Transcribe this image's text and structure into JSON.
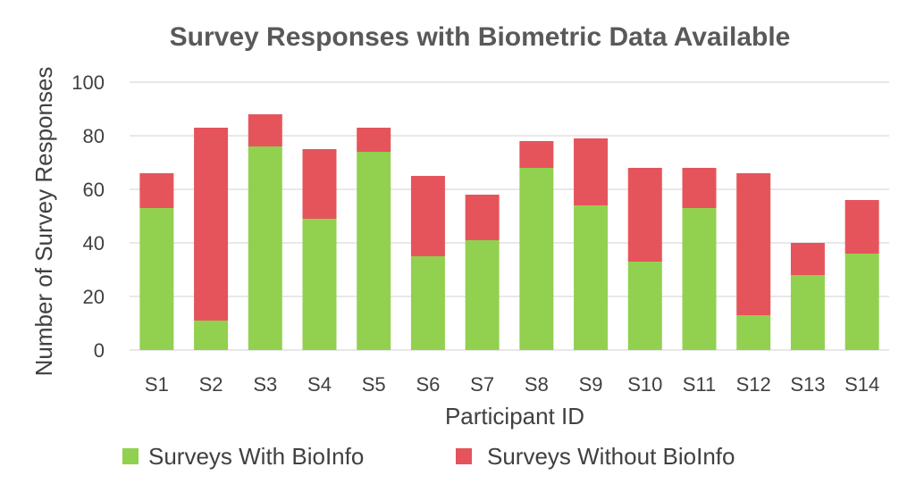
{
  "chart_data": {
    "type": "bar",
    "stacked": true,
    "title": "Survey Responses with Biometric Data Available",
    "xlabel": "Participant ID",
    "ylabel": "Number of Survey Responses",
    "ylim": [
      0,
      100
    ],
    "yticks": [
      "0",
      "20",
      "40",
      "60",
      "80",
      "100"
    ],
    "grid": true,
    "legend_position": "bottom",
    "categories": [
      "S1",
      "S2",
      "S3",
      "S4",
      "S5",
      "S6",
      "S7",
      "S8",
      "S9",
      "S10",
      "S11",
      "S12",
      "S13",
      "S14"
    ],
    "series": [
      {
        "name": "Surveys With BioInfo",
        "color": "#92d050",
        "values": [
          53,
          11,
          76,
          49,
          74,
          35,
          41,
          68,
          54,
          33,
          53,
          13,
          28,
          36
        ]
      },
      {
        "name": "Surveys Without BioInfo",
        "color": "#e5545a",
        "values": [
          13,
          72,
          12,
          26,
          9,
          30,
          17,
          10,
          25,
          35,
          15,
          53,
          12,
          20
        ]
      }
    ]
  }
}
